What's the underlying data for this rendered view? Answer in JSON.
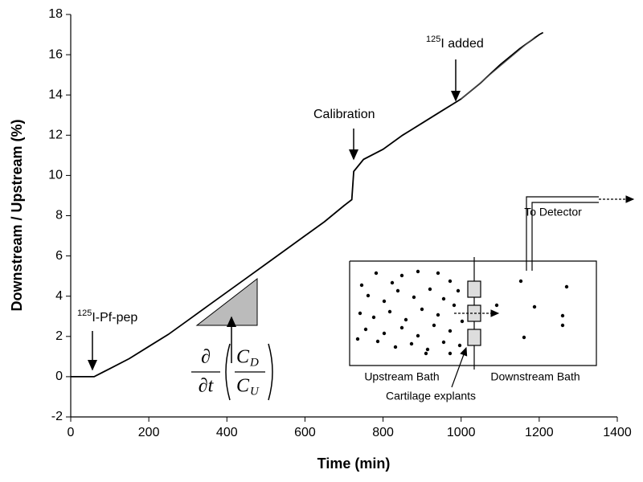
{
  "chart_data": {
    "type": "line",
    "x_label": "Time (min)",
    "y_label": "Downstream / Upstream (%)",
    "xlim": [
      0,
      1400
    ],
    "xticks": [
      0,
      200,
      400,
      600,
      800,
      1000,
      1200,
      1400
    ],
    "ylim": [
      -2,
      18
    ],
    "yticks": [
      -2,
      0,
      2,
      4,
      6,
      8,
      10,
      12,
      14,
      16,
      18
    ],
    "series": [
      {
        "color": "#000000",
        "x": [
          0,
          60,
          100,
          150,
          200,
          250,
          300,
          350,
          400,
          450,
          500,
          550,
          600,
          650,
          700,
          720,
          725,
          750,
          800,
          850,
          900,
          950,
          1000,
          1050,
          1100,
          1150,
          1200,
          1210
        ],
        "values": [
          0,
          0,
          0.4,
          0.9,
          1.5,
          2.1,
          2.8,
          3.5,
          4.2,
          4.9,
          5.6,
          6.3,
          7.0,
          7.7,
          8.5,
          8.8,
          10.2,
          10.8,
          11.3,
          12.0,
          12.6,
          13.2,
          13.8,
          14.6,
          15.5,
          16.3,
          17.0,
          17.1
        ]
      },
      {
        "color": "#555555",
        "x": [
          1000,
          1190
        ],
        "values": [
          13.8,
          16.9
        ]
      }
    ],
    "annotations": [
      {
        "sup": "125",
        "text": "I-Pf-pep"
      },
      {
        "text": "Calibration"
      },
      {
        "sup": "125",
        "text": "I added"
      }
    ],
    "formula": {
      "numerator": "∂",
      "denominator": "∂t",
      "top": "C",
      "top_sub": "D",
      "bottom": "C",
      "bottom_sub": "U"
    },
    "inset": {
      "upstream": "Upstream Bath",
      "downstream": "Downstream Bath",
      "detector": "To Detector",
      "explants": "Cartilage explants"
    }
  }
}
